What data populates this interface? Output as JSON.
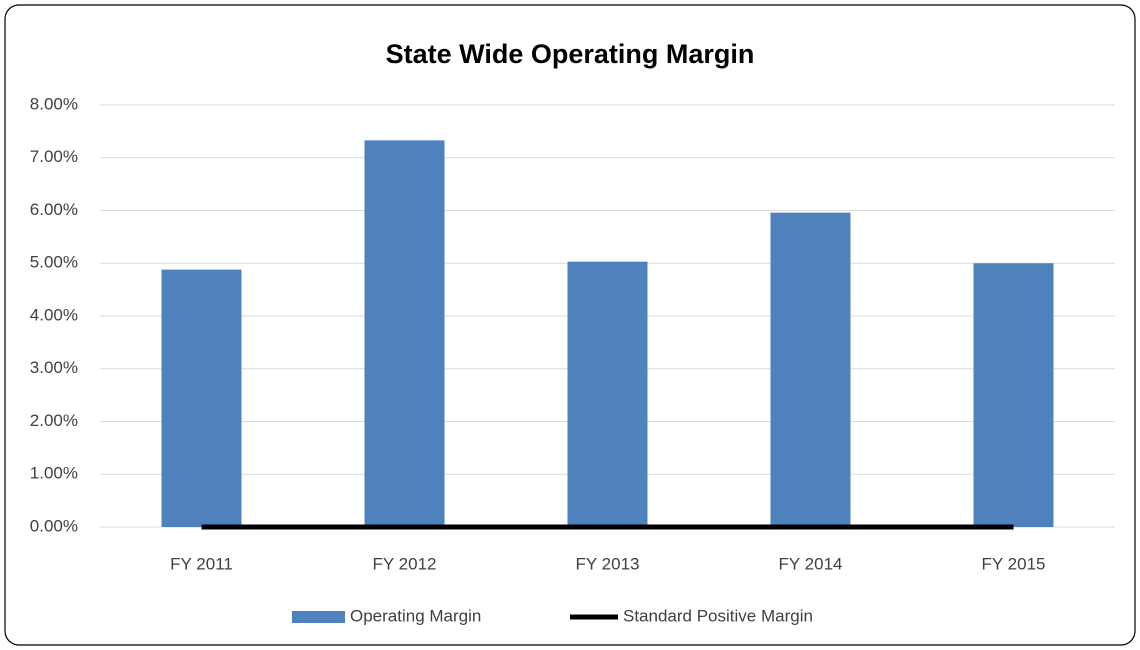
{
  "chart_data": {
    "type": "bar",
    "title": "State Wide Operating Margin",
    "categories": [
      "FY 2011",
      "FY 2012",
      "FY 2013",
      "FY 2014",
      "FY 2015"
    ],
    "series": [
      {
        "name": "Operating Margin",
        "type": "bar",
        "color": "#4f81bd",
        "values": [
          4.88,
          7.33,
          5.03,
          5.96,
          5.0
        ]
      },
      {
        "name": "Standard Positive Margin",
        "type": "line",
        "color": "#000000",
        "values": [
          0,
          0,
          0,
          0,
          0
        ]
      }
    ],
    "ylim": [
      0,
      8
    ],
    "yticks": [
      {
        "value": 0,
        "label": "0.00%"
      },
      {
        "value": 1,
        "label": "1.00%"
      },
      {
        "value": 2,
        "label": "2.00%"
      },
      {
        "value": 3,
        "label": "3.00%"
      },
      {
        "value": 4,
        "label": "4.00%"
      },
      {
        "value": 5,
        "label": "5.00%"
      },
      {
        "value": 6,
        "label": "6.00%"
      },
      {
        "value": 7,
        "label": "7.00%"
      },
      {
        "value": 8,
        "label": "8.00%"
      }
    ],
    "grid": true,
    "legend": "bottom"
  }
}
